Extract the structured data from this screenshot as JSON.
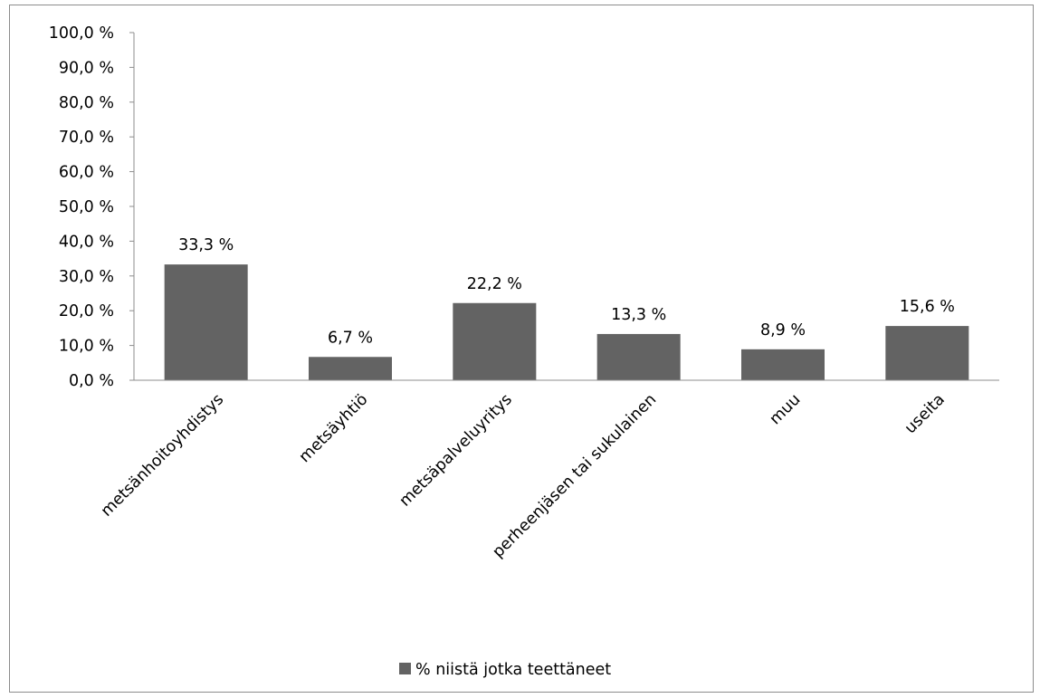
{
  "chart_data": {
    "type": "bar",
    "title": "",
    "xlabel": "",
    "ylabel": "",
    "categories": [
      "metsänhoitoyhdistys",
      "metsäyhtiö",
      "metsäpalveluyritys",
      "perheenjäsen tai sukulainen",
      "muu",
      "useita"
    ],
    "series": [
      {
        "name": "% niistä jotka teettäneet",
        "values": [
          33.3,
          6.7,
          22.2,
          13.3,
          8.9,
          15.6
        ],
        "labels": [
          "33,3 %",
          "6,7 %",
          "22,2 %",
          "13,3 %",
          "8,9 %",
          "15,6 %"
        ],
        "color": "#636363"
      }
    ],
    "ylim": [
      0,
      100
    ],
    "yticks": [
      0,
      10,
      20,
      30,
      40,
      50,
      60,
      70,
      80,
      90,
      100
    ],
    "ytick_labels": [
      "0,0 %",
      "10,0 %",
      "20,0 %",
      "30,0 %",
      "40,0 %",
      "50,0 %",
      "60,0 %",
      "70,0 %",
      "80,0 %",
      "90,0 %",
      "100,0 %"
    ],
    "grid": false,
    "legend": {
      "position": "bottom",
      "label": "% niistä jotka teettäneet"
    }
  }
}
